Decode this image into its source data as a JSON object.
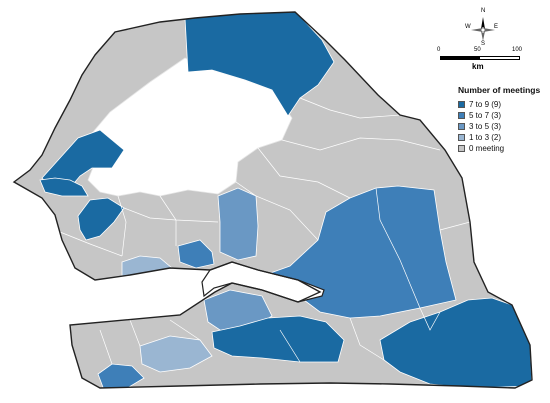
{
  "legend": {
    "title": "Number of meetings",
    "items": [
      {
        "label": "7 to 9  (9)",
        "color": "#1a6aa2"
      },
      {
        "label": "5 to 7  (3)",
        "color": "#3e7fb8"
      },
      {
        "label": "3 to 5  (3)",
        "color": "#6a98c4"
      },
      {
        "label": "1 to 3  (2)",
        "color": "#9ab6d2"
      },
      {
        "label": "0 meeting",
        "color": "#c6c6c6"
      }
    ]
  },
  "scale": {
    "ticks": [
      "0",
      "50",
      "100"
    ],
    "unit": "km"
  },
  "compass": {
    "n": "N",
    "s": "S",
    "e": "E",
    "w": "W"
  },
  "colors": {
    "no_data": "#ffffff",
    "border": "#222222",
    "inner_border": "#ffffff"
  }
}
